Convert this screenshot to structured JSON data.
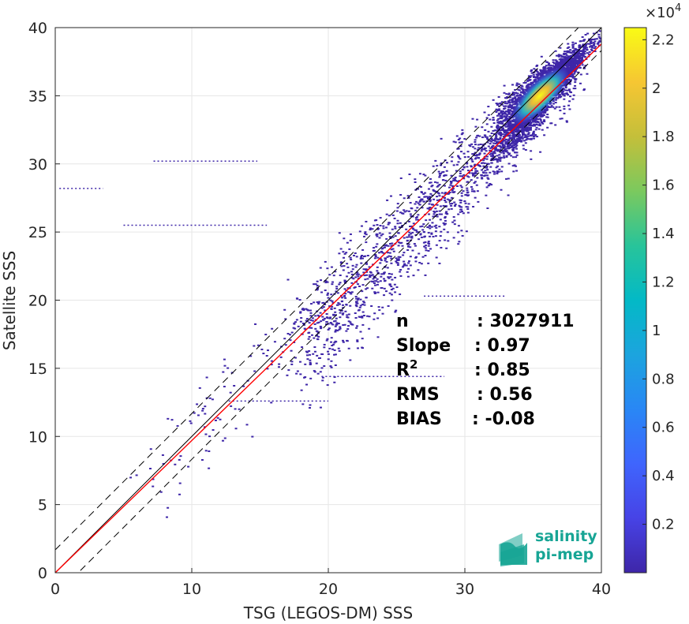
{
  "chart_data": {
    "type": "heatmap",
    "title": "",
    "xlabel": "TSG (LEGOS-DM) SSS",
    "ylabel": "Satellite SSS",
    "xlim": [
      0,
      40
    ],
    "ylim": [
      0,
      40
    ],
    "xticks": [
      "0",
      "10",
      "20",
      "30",
      "40"
    ],
    "yticks": [
      "0",
      "5",
      "10",
      "15",
      "20",
      "25",
      "30",
      "35",
      "40"
    ],
    "grid": true,
    "colorbar": {
      "colormap": "parula",
      "multiplier": "×10",
      "exponent": "4",
      "range": [
        0,
        22500
      ],
      "ticks": [
        "0.2",
        "0.4",
        "0.6",
        "0.8",
        "1",
        "1.2",
        "1.4",
        "1.6",
        "1.8",
        "2",
        "2.2"
      ]
    },
    "density_peak": {
      "x": 35.5,
      "y": 35.0
    },
    "lines": [
      {
        "name": "one-to-one",
        "color": "#000000",
        "style": "solid",
        "slope": 1.0,
        "intercept": 0.0
      },
      {
        "name": "upper bound",
        "color": "#000000",
        "style": "dashed",
        "slope": 1.0,
        "intercept": 1.68
      },
      {
        "name": "lower bound",
        "color": "#000000",
        "style": "dashed",
        "slope": 1.0,
        "intercept": -1.68
      },
      {
        "name": "fit",
        "color": "#ff0000",
        "style": "solid",
        "slope": 0.97,
        "intercept": 0.0
      }
    ],
    "stats": [
      {
        "label": "n",
        "value": ": 3027911"
      },
      {
        "label": "Slope",
        "value": ": 0.97"
      },
      {
        "label": "R",
        "sup": "2",
        "value": ": 0.85"
      },
      {
        "label": "RMS",
        "value": ": 0.56"
      },
      {
        "label": "BIAS",
        "value": ": -0.08"
      }
    ]
  },
  "logo": {
    "line1": "salinity",
    "line2": "pi-mep"
  },
  "colors": {
    "axis": "#262626",
    "grid": "#e6e6e6",
    "fit_line": "#ff0000",
    "logo": "#17a595"
  }
}
